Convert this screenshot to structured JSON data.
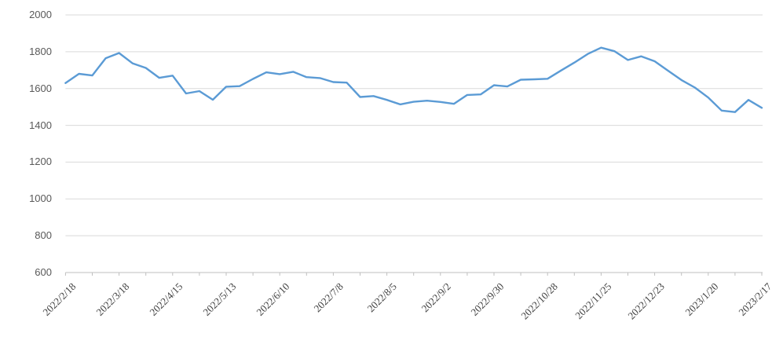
{
  "chart_data": {
    "type": "line",
    "title": "",
    "xlabel": "",
    "ylabel": "",
    "legend": "none",
    "grid": "horizontal",
    "ylim": [
      600,
      2000
    ],
    "y_ticks": [
      2000,
      1800,
      1600,
      1400,
      1200,
      1000,
      800,
      600
    ],
    "x_tick_labels": [
      "2022/2/18",
      "2022/3/18",
      "2022/4/15",
      "2022/5/13",
      "2022/6/10",
      "2022/7/8",
      "2022/8/5",
      "2022/9/2",
      "2022/9/30",
      "2022/10/28",
      "2022/11/25",
      "2022/12/23",
      "2023/1/20",
      "2023/2/17"
    ],
    "label_every_n_points": 4,
    "minor_tick_every_n_points": 2,
    "x": [
      "2022/2/18",
      "2022/2/25",
      "2022/3/4",
      "2022/3/11",
      "2022/3/18",
      "2022/3/25",
      "2022/4/1",
      "2022/4/8",
      "2022/4/15",
      "2022/4/22",
      "2022/4/29",
      "2022/5/6",
      "2022/5/13",
      "2022/5/20",
      "2022/5/27",
      "2022/6/3",
      "2022/6/10",
      "2022/6/17",
      "2022/6/24",
      "2022/7/1",
      "2022/7/8",
      "2022/7/15",
      "2022/7/22",
      "2022/7/29",
      "2022/8/5",
      "2022/8/12",
      "2022/8/19",
      "2022/8/26",
      "2022/9/2",
      "2022/9/9",
      "2022/9/16",
      "2022/9/23",
      "2022/9/30",
      "2022/10/7",
      "2022/10/14",
      "2022/10/21",
      "2022/10/28",
      "2022/11/4",
      "2022/11/11",
      "2022/11/18",
      "2022/11/25",
      "2022/12/2",
      "2022/12/9",
      "2022/12/16",
      "2022/12/23",
      "2022/12/30",
      "2023/1/6",
      "2023/1/13",
      "2023/1/20",
      "2023/1/27",
      "2023/2/3",
      "2023/2/10",
      "2023/2/17"
    ],
    "values": [
      1630,
      1680,
      1671,
      1765,
      1793,
      1737,
      1712,
      1658,
      1670,
      1573,
      1586,
      1539,
      1610,
      1613,
      1652,
      1688,
      1678,
      1691,
      1662,
      1657,
      1635,
      1632,
      1554,
      1559,
      1538,
      1514,
      1528,
      1534,
      1527,
      1517,
      1565,
      1568,
      1618,
      1611,
      1648,
      1650,
      1653,
      1698,
      1741,
      1788,
      1822,
      1803,
      1755,
      1775,
      1748,
      1697,
      1646,
      1605,
      1551,
      1480,
      1472,
      1538,
      1495
    ],
    "series_color": "#5B9BD5",
    "gridline_color": "#D9D9D9",
    "axis_color": "#BFBFBF",
    "y_label_color": "#595959",
    "x_label_color": "#404040"
  }
}
